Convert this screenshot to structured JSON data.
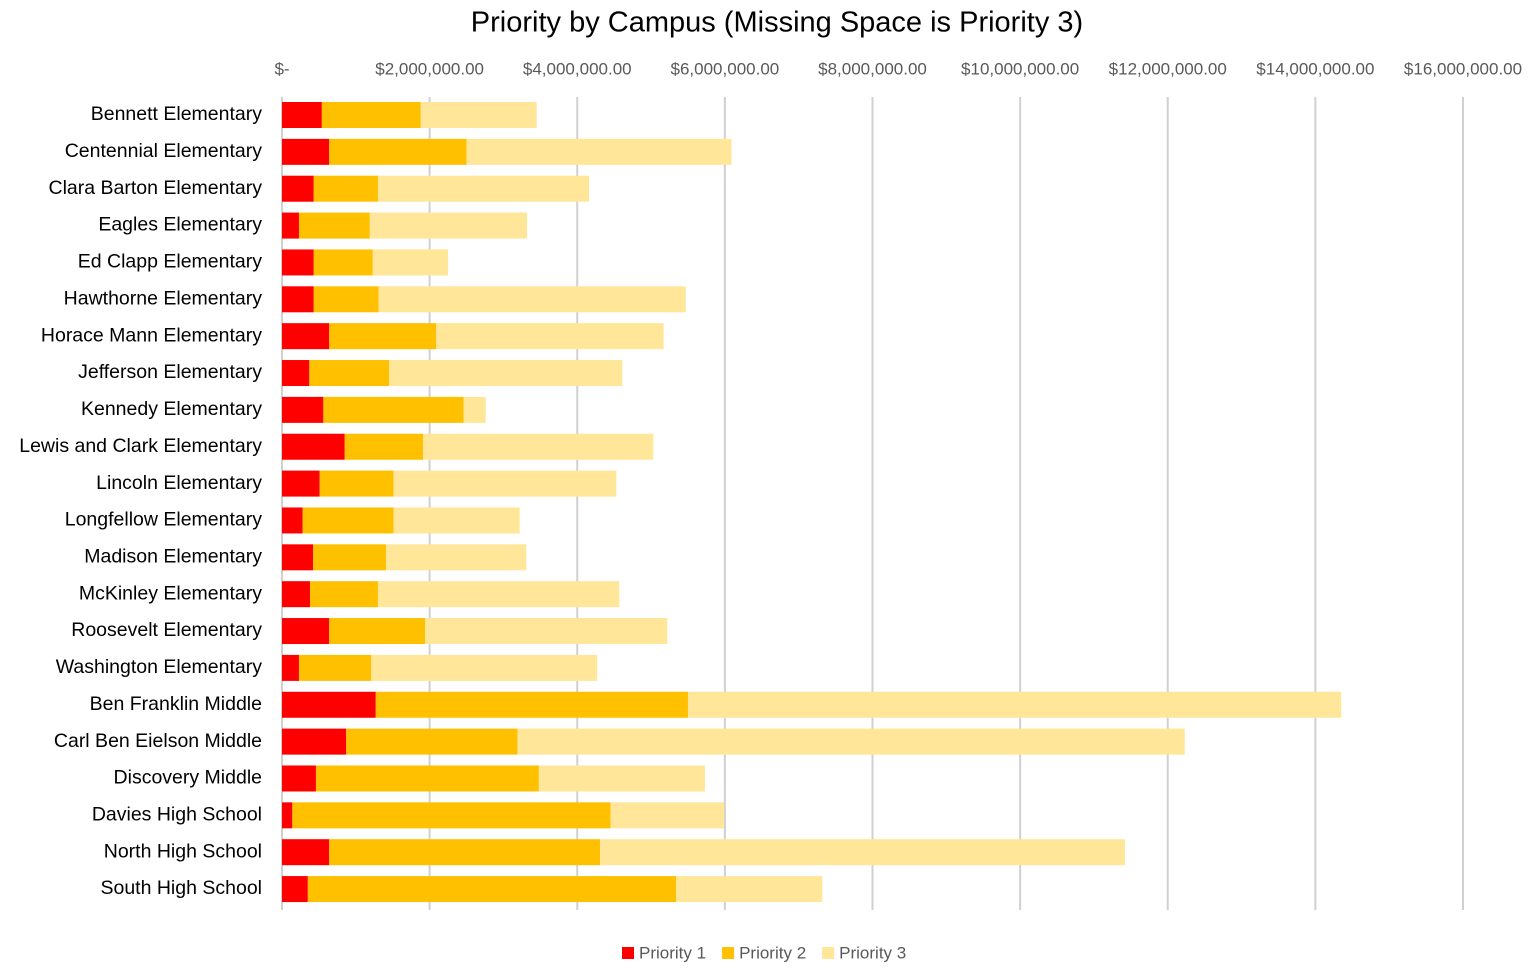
{
  "chart_data": {
    "type": "stacked-bar-horizontal",
    "title": "Priority by Campus (Missing Space is Priority 3)",
    "categories": [
      "Bennett Elementary",
      "Centennial Elementary",
      "Clara Barton Elementary",
      "Eagles Elementary",
      "Ed Clapp Elementary",
      "Hawthorne Elementary",
      "Horace Mann Elementary",
      "Jefferson Elementary",
      "Kennedy Elementary",
      "Lewis and Clark Elementary",
      "Lincoln Elementary",
      "Longfellow Elementary",
      "Madison Elementary",
      "McKinley Elementary",
      "Roosevelt Elementary",
      "Washington Elementary",
      "Ben Franklin Middle",
      "Carl Ben Eielson Middle",
      "Discovery Middle",
      "Davies High School",
      "North High School",
      "South High School"
    ],
    "series": [
      {
        "name": "Priority 1",
        "color": "#ff0000",
        "values": [
          540000,
          640000,
          430000,
          230000,
          430000,
          430000,
          640000,
          370000,
          560000,
          850000,
          510000,
          280000,
          420000,
          380000,
          640000,
          230000,
          1270000,
          870000,
          460000,
          140000,
          640000,
          350000
        ]
      },
      {
        "name": "Priority 2",
        "color": "#ffc000",
        "values": [
          1340000,
          1860000,
          870000,
          960000,
          800000,
          880000,
          1450000,
          1080000,
          1900000,
          1060000,
          1000000,
          1230000,
          990000,
          920000,
          1300000,
          980000,
          4230000,
          2320000,
          3020000,
          4310000,
          3670000,
          4990000
        ]
      },
      {
        "name": "Priority 3",
        "color": "#ffe699",
        "values": [
          1570000,
          3590000,
          2860000,
          2130000,
          1020000,
          4160000,
          3080000,
          3160000,
          300000,
          3120000,
          3020000,
          1710000,
          1900000,
          3270000,
          3280000,
          3060000,
          8850000,
          9040000,
          2250000,
          1540000,
          7110000,
          1980000
        ]
      }
    ],
    "xlim": [
      0,
      16000000
    ],
    "xticks": [
      {
        "value": 0,
        "label": "$-"
      },
      {
        "value": 2000000,
        "label": "$2,000,000.00"
      },
      {
        "value": 4000000,
        "label": "$4,000,000.00"
      },
      {
        "value": 6000000,
        "label": "$6,000,000.00"
      },
      {
        "value": 8000000,
        "label": "$8,000,000.00"
      },
      {
        "value": 10000000,
        "label": "$10,000,000.00"
      },
      {
        "value": 12000000,
        "label": "$12,000,000.00"
      },
      {
        "value": 14000000,
        "label": "$14,000,000.00"
      },
      {
        "value": 16000000,
        "label": "$16,000,000.00"
      }
    ],
    "grid": true,
    "legend": "bottom"
  }
}
